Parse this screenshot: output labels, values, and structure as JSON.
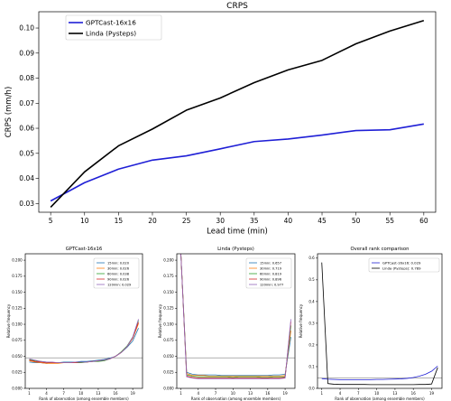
{
  "chart_data": [
    {
      "id": "crps",
      "type": "line",
      "title": "CRPS",
      "xlabel": "Lead time (min)",
      "ylabel": "CRPS (mm/h)",
      "xlim": [
        3.25,
        61.75
      ],
      "ylim": [
        0.0265,
        0.1065
      ],
      "xticks": [
        5,
        10,
        15,
        20,
        25,
        30,
        35,
        40,
        45,
        50,
        55,
        60
      ],
      "yticks": [
        0.03,
        0.04,
        0.05,
        0.06,
        0.07,
        0.08,
        0.09,
        0.1
      ],
      "ytick_labels": [
        "0.03",
        "0.04",
        "0.05",
        "0.06",
        "0.07",
        "0.08",
        "0.09",
        "0.10"
      ],
      "legend_position": "upper-left",
      "grid": false,
      "x": [
        5,
        10,
        15,
        20,
        25,
        30,
        35,
        40,
        45,
        50,
        55,
        60
      ],
      "series": [
        {
          "name": "GPTCast-16x16",
          "color": "#1f1fd6",
          "values": [
            0.031,
            0.0383,
            0.0437,
            0.0473,
            0.049,
            0.0518,
            0.0547,
            0.0557,
            0.0573,
            0.0591,
            0.0594,
            0.0617
          ]
        },
        {
          "name": "Linda (Pysteps)",
          "color": "#000000",
          "values": [
            0.0285,
            0.0426,
            0.053,
            0.0597,
            0.0672,
            0.0721,
            0.0782,
            0.0833,
            0.0871,
            0.0937,
            0.0988,
            0.103
          ]
        }
      ]
    },
    {
      "id": "gptcast-rank",
      "type": "line",
      "title": "GPTCast-16x16",
      "xlabel": "Rank of observation (among ensemble members)",
      "ylabel": "Relative frequency",
      "xlim": [
        0.3,
        20.7
      ],
      "ylim": [
        0,
        0.21
      ],
      "xticks": [
        1,
        4,
        7,
        10,
        13,
        16,
        19
      ],
      "yticks": [
        0,
        0.025,
        0.05,
        0.075,
        0.1,
        0.125,
        0.15,
        0.175,
        0.2
      ],
      "ytick_labels": [
        "0.000",
        "0.025",
        "0.050",
        "0.075",
        "0.100",
        "0.125",
        "0.150",
        "0.175",
        "0.200"
      ],
      "reference_line": 0.0476,
      "legend_position": "upper-right",
      "x": [
        1,
        2,
        3,
        4,
        5,
        6,
        7,
        8,
        9,
        10,
        11,
        12,
        13,
        14,
        15,
        16,
        17,
        18,
        19,
        20
      ],
      "series": [
        {
          "name": "15min: 0.020",
          "color": "#1f77b4",
          "values": [
            0.041,
            0.04,
            0.04,
            0.039,
            0.04,
            0.04,
            0.041,
            0.041,
            0.041,
            0.042,
            0.042,
            0.043,
            0.044,
            0.045,
            0.047,
            0.05,
            0.056,
            0.064,
            0.074,
            0.094
          ]
        },
        {
          "name": "30min: 0.026",
          "color": "#ff7f0e",
          "values": [
            0.043,
            0.041,
            0.04,
            0.039,
            0.039,
            0.039,
            0.04,
            0.04,
            0.04,
            0.041,
            0.041,
            0.042,
            0.043,
            0.044,
            0.046,
            0.05,
            0.056,
            0.065,
            0.078,
            0.101
          ]
        },
        {
          "name": "60min: 0.038",
          "color": "#2ca02c",
          "values": [
            0.045,
            0.043,
            0.042,
            0.041,
            0.04,
            0.04,
            0.04,
            0.04,
            0.04,
            0.04,
            0.041,
            0.042,
            0.042,
            0.043,
            0.046,
            0.05,
            0.057,
            0.066,
            0.08,
            0.106
          ]
        },
        {
          "name": "90min: 0.026",
          "color": "#d62728",
          "values": [
            0.044,
            0.042,
            0.041,
            0.04,
            0.04,
            0.04,
            0.04,
            0.04,
            0.04,
            0.041,
            0.041,
            0.042,
            0.043,
            0.044,
            0.046,
            0.05,
            0.056,
            0.065,
            0.079,
            0.103
          ]
        },
        {
          "name": "120min: 0.029",
          "color": "#9467bd",
          "values": [
            0.046,
            0.044,
            0.042,
            0.041,
            0.041,
            0.04,
            0.04,
            0.04,
            0.041,
            0.041,
            0.041,
            0.042,
            0.043,
            0.044,
            0.046,
            0.05,
            0.056,
            0.065,
            0.08,
            0.108
          ]
        }
      ]
    },
    {
      "id": "linda-rank",
      "type": "line",
      "title": "Linda (Pysteps)",
      "xlabel": "Rank of observation (among ensemble members)",
      "ylabel": "Relative frequency",
      "xlim": [
        0.3,
        20.7
      ],
      "ylim": [
        0,
        0.21
      ],
      "xticks": [
        1,
        4,
        7,
        10,
        13,
        16,
        19
      ],
      "yticks": [
        0,
        0.025,
        0.05,
        0.075,
        0.1,
        0.125,
        0.15,
        0.175,
        0.2
      ],
      "ytick_labels": [
        "0.000",
        "0.025",
        "0.050",
        "0.075",
        "0.100",
        "0.125",
        "0.150",
        "0.175",
        "0.200"
      ],
      "reference_line": 0.0476,
      "legend_position": "upper-right",
      "x": [
        1,
        2,
        3,
        4,
        5,
        6,
        7,
        8,
        9,
        10,
        11,
        12,
        13,
        14,
        15,
        16,
        17,
        18,
        19,
        20
      ],
      "series": [
        {
          "name": "15min: 0.657",
          "color": "#1f77b4",
          "values": [
            0.21,
            0.025,
            0.022,
            0.021,
            0.021,
            0.021,
            0.021,
            0.02,
            0.02,
            0.02,
            0.02,
            0.02,
            0.02,
            0.02,
            0.02,
            0.02,
            0.021,
            0.021,
            0.022,
            0.08
          ]
        },
        {
          "name": "30min: 0.719",
          "color": "#ff7f0e",
          "values": [
            0.21,
            0.023,
            0.02,
            0.02,
            0.02,
            0.019,
            0.019,
            0.019,
            0.019,
            0.019,
            0.019,
            0.019,
            0.019,
            0.019,
            0.019,
            0.019,
            0.019,
            0.019,
            0.02,
            0.09
          ]
        },
        {
          "name": "60min: 0.819",
          "color": "#2ca02c",
          "values": [
            0.21,
            0.021,
            0.019,
            0.018,
            0.018,
            0.018,
            0.018,
            0.018,
            0.018,
            0.017,
            0.018,
            0.018,
            0.018,
            0.018,
            0.017,
            0.017,
            0.018,
            0.018,
            0.018,
            0.098
          ]
        },
        {
          "name": "90min: 0.896",
          "color": "#d62728",
          "values": [
            0.21,
            0.019,
            0.017,
            0.016,
            0.016,
            0.016,
            0.016,
            0.016,
            0.016,
            0.016,
            0.016,
            0.016,
            0.016,
            0.016,
            0.016,
            0.016,
            0.016,
            0.016,
            0.017,
            0.104
          ]
        },
        {
          "name": "120min: 0.977",
          "color": "#9467bd",
          "values": [
            0.21,
            0.018,
            0.016,
            0.015,
            0.015,
            0.015,
            0.015,
            0.015,
            0.015,
            0.015,
            0.015,
            0.015,
            0.015,
            0.015,
            0.015,
            0.015,
            0.015,
            0.015,
            0.016,
            0.108
          ]
        }
      ]
    },
    {
      "id": "overall-rank",
      "type": "line",
      "title": "Overall rank comparison",
      "xlabel": "Rank of observation (among ensemble members)",
      "ylabel": "Relative frequency",
      "xlim": [
        0.3,
        20.7
      ],
      "ylim": [
        0,
        0.62
      ],
      "xticks": [
        1,
        4,
        7,
        10,
        13,
        16,
        19
      ],
      "yticks": [
        0,
        0.1,
        0.2,
        0.3,
        0.4,
        0.5,
        0.6
      ],
      "ytick_labels": [
        "0.0",
        "0.1",
        "0.2",
        "0.3",
        "0.4",
        "0.5",
        "0.6"
      ],
      "reference_line": 0.0476,
      "legend_position": "upper-right",
      "x": [
        1,
        2,
        3,
        4,
        5,
        6,
        7,
        8,
        9,
        10,
        11,
        12,
        13,
        14,
        15,
        16,
        17,
        18,
        19,
        20
      ],
      "series": [
        {
          "name": "GPTCast-16x16: 0.029",
          "color": "#1f1fd6",
          "values": [
            0.045,
            0.042,
            0.041,
            0.04,
            0.04,
            0.04,
            0.04,
            0.04,
            0.04,
            0.041,
            0.041,
            0.042,
            0.043,
            0.044,
            0.046,
            0.05,
            0.056,
            0.065,
            0.079,
            0.103
          ]
        },
        {
          "name": "Linda (Pysteps): 0.789",
          "color": "#000000",
          "values": [
            0.58,
            0.022,
            0.019,
            0.018,
            0.018,
            0.018,
            0.018,
            0.018,
            0.017,
            0.017,
            0.017,
            0.017,
            0.017,
            0.017,
            0.017,
            0.017,
            0.018,
            0.018,
            0.02,
            0.096
          ]
        }
      ]
    }
  ]
}
